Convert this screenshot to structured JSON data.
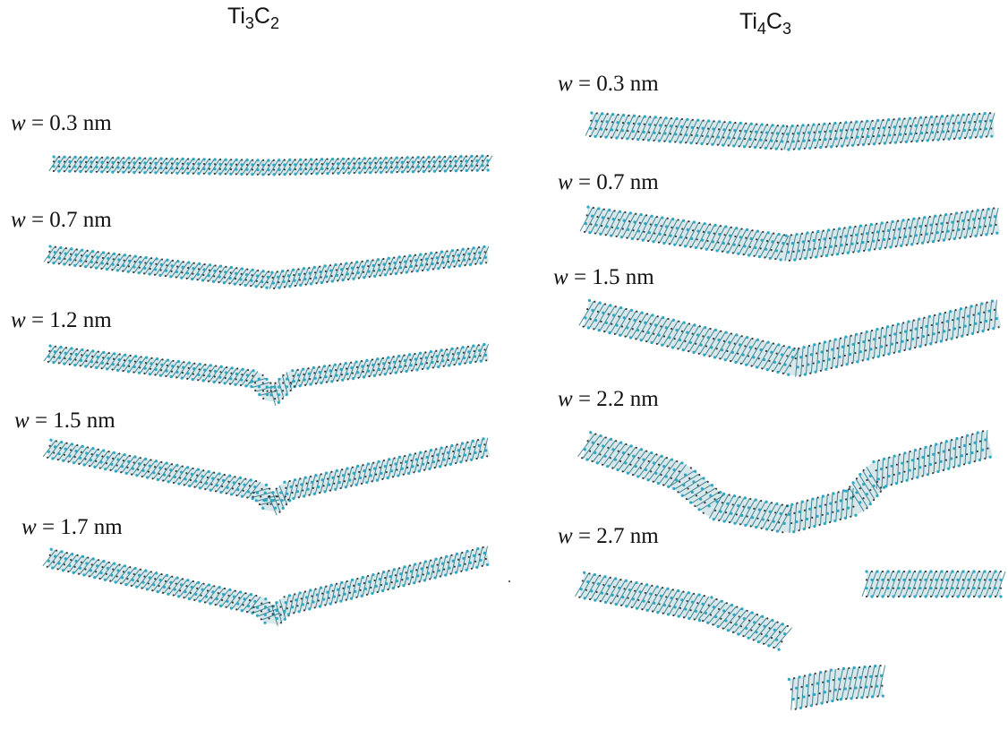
{
  "headers": {
    "left": {
      "base1": "Ti",
      "sub1": "3",
      "base2": "C",
      "sub2": "2"
    },
    "right": {
      "base1": "Ti",
      "sub1": "4",
      "base2": "C",
      "sub2": "3"
    }
  },
  "colors": {
    "atom_ti": "#2aa7c2",
    "atom_c": "#3a3a3a",
    "bond": "#1f6f82",
    "text": "#111111"
  },
  "left_panels": [
    {
      "var": "w",
      "eq": " = 0.3 nm"
    },
    {
      "var": "w",
      "eq": " = 0.7 nm"
    },
    {
      "var": "w",
      "eq": " = 1.2 nm"
    },
    {
      "var": "w",
      "eq": " = 1.5 nm"
    },
    {
      "var": "w",
      "eq": " = 1.7 nm"
    }
  ],
  "right_panels": [
    {
      "var": "w",
      "eq": " = 0.3 nm"
    },
    {
      "var": "w",
      "eq": " = 0.7 nm"
    },
    {
      "var": "w",
      "eq": " = 1.5 nm"
    },
    {
      "var": "w",
      "eq": " = 2.2 nm"
    },
    {
      "var": "w",
      "eq": " = 2.7 nm"
    }
  ]
}
